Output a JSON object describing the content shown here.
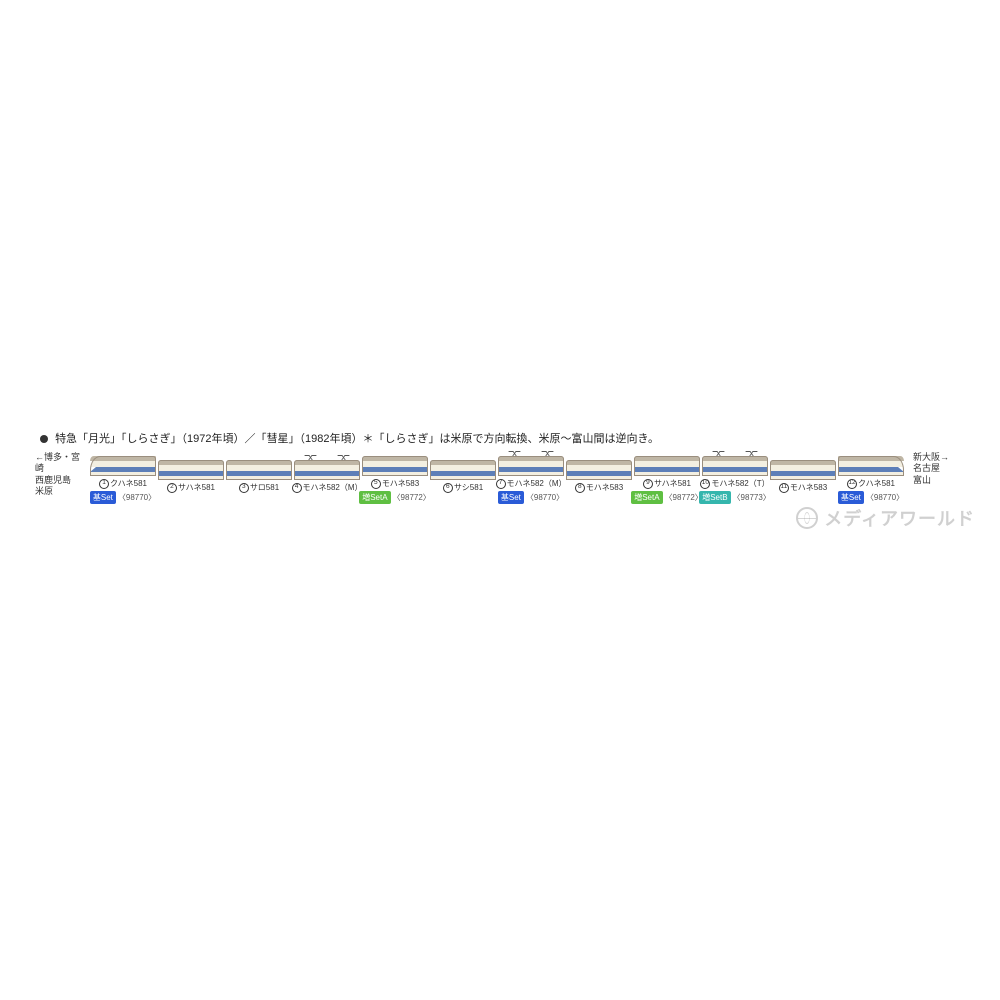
{
  "title": "特急「月光」「しらさぎ」（1972年頃）／「彗星」（1982年頃）＊「しらさぎ」は米原で方向転換、米原〜富山間は逆向き。",
  "colors": {
    "roof": "#bfb6a5",
    "upper": "#f3efe1",
    "stripe": "#5d7fb8",
    "lower": "#f3efe1",
    "outline": "#9a8e7e",
    "text": "#333333"
  },
  "dest_left": {
    "arrow": "←",
    "lines": [
      "博多・宮崎",
      "西鹿児島",
      "米原"
    ]
  },
  "dest_right": {
    "arrow": "→",
    "lines": [
      "新大阪",
      "名古屋",
      "富山"
    ]
  },
  "sets": {
    "base": {
      "label": "基Set",
      "color": "#2a5bd7",
      "code": "〈98770〉"
    },
    "addA": {
      "label": "増SetA",
      "color": "#5fbf42",
      "code": "〈98772〉"
    },
    "addB": {
      "label": "増SetB",
      "color": "#35b6ad",
      "code": "〈98773〉"
    }
  },
  "cars": [
    {
      "n": 1,
      "name": "クハネ581",
      "panto": 0,
      "cab": "l",
      "set": "base"
    },
    {
      "n": 2,
      "name": "サハネ581",
      "panto": 0,
      "cab": "",
      "set": null
    },
    {
      "n": 3,
      "name": "サロ581",
      "panto": 0,
      "cab": "",
      "set": null
    },
    {
      "n": 4,
      "name": "モハネ582（M）",
      "panto": 2,
      "cab": "",
      "set": null
    },
    {
      "n": 5,
      "name": "モハネ583",
      "panto": 0,
      "cab": "",
      "set": "addA"
    },
    {
      "n": 6,
      "name": "サシ581",
      "panto": 0,
      "cab": "",
      "set": null
    },
    {
      "n": 7,
      "name": "モハネ582（M）",
      "panto": 2,
      "cab": "",
      "set": "base"
    },
    {
      "n": 8,
      "name": "モハネ583",
      "panto": 0,
      "cab": "",
      "set": null
    },
    {
      "n": 9,
      "name": "サハネ581",
      "panto": 0,
      "cab": "",
      "set": "addA"
    },
    {
      "n": 10,
      "name": "モハネ582（T）",
      "panto": 2,
      "cab": "",
      "set": "addB"
    },
    {
      "n": 11,
      "name": "モハネ583",
      "panto": 0,
      "cab": "",
      "set": null
    },
    {
      "n": 12,
      "name": "クハネ581",
      "panto": 0,
      "cab": "r",
      "set": "base"
    }
  ],
  "watermark": "メディアワールド"
}
